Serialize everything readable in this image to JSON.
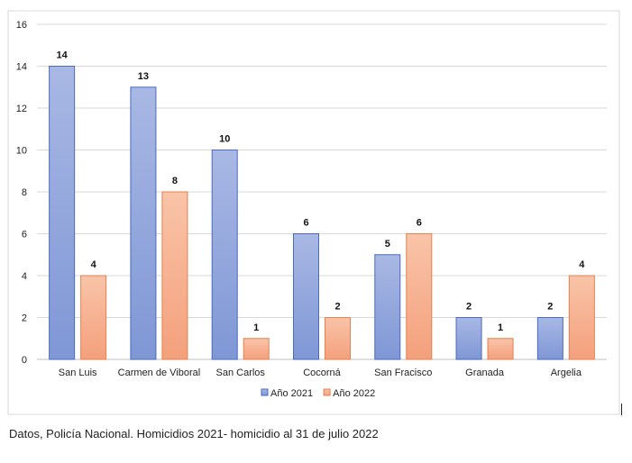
{
  "chart_data": {
    "type": "bar",
    "categories": [
      "San Luis",
      "Carmen de Viboral",
      "San Carlos",
      "Cocorná",
      "San Fracisco",
      "Granada",
      "Argelia"
    ],
    "series": [
      {
        "name": "Año 2021",
        "values": [
          14,
          13,
          10,
          6,
          5,
          2,
          2
        ],
        "color": "#8fa5dc"
      },
      {
        "name": "Año 2022",
        "values": [
          4,
          8,
          1,
          2,
          6,
          1,
          4
        ],
        "color": "#f7a47f"
      }
    ],
    "ylim": [
      0,
      16
    ],
    "yticks": [
      0,
      2,
      4,
      6,
      8,
      10,
      12,
      14,
      16
    ],
    "grid": true,
    "legend": "bottom",
    "data_labels": true
  },
  "caption": "Datos, Policía Nacional. Homicidios 2021- homicidio al 31 de julio 2022"
}
